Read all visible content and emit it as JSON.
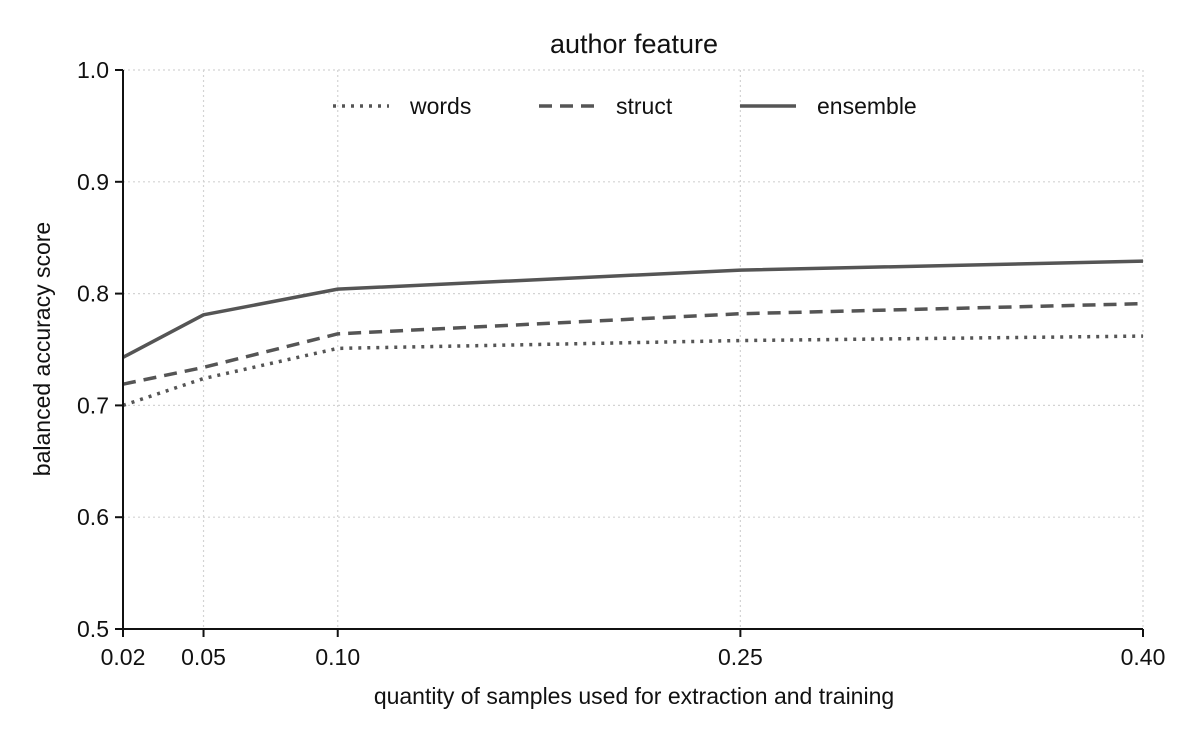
{
  "chart_data": {
    "type": "line",
    "title": "author feature",
    "xlabel": "quantity of samples used for extraction and training",
    "ylabel": "balanced accuracy score",
    "x": [
      0.02,
      0.05,
      0.1,
      0.25,
      0.4
    ],
    "x_tick_labels": [
      "0.02",
      "0.05",
      "0.10",
      "0.25",
      "0.40"
    ],
    "xlim": [
      0.02,
      0.4
    ],
    "ylim": [
      0.5,
      1.0
    ],
    "y_ticks": [
      0.5,
      0.6,
      0.7,
      0.8,
      0.9,
      1.0
    ],
    "y_tick_labels": [
      "0.5",
      "0.6",
      "0.7",
      "0.8",
      "0.9",
      "1.0"
    ],
    "grid": true,
    "legend_position": "top-center",
    "series": [
      {
        "name": "words",
        "values": [
          0.7,
          0.724,
          0.751,
          0.758,
          0.762
        ],
        "style": "dotted",
        "color": "#555555"
      },
      {
        "name": "struct",
        "values": [
          0.719,
          0.734,
          0.764,
          0.782,
          0.791
        ],
        "style": "dashed",
        "color": "#555555"
      },
      {
        "name": "ensemble",
        "values": [
          0.743,
          0.781,
          0.804,
          0.821,
          0.829
        ],
        "style": "solid",
        "color": "#555555"
      }
    ]
  }
}
